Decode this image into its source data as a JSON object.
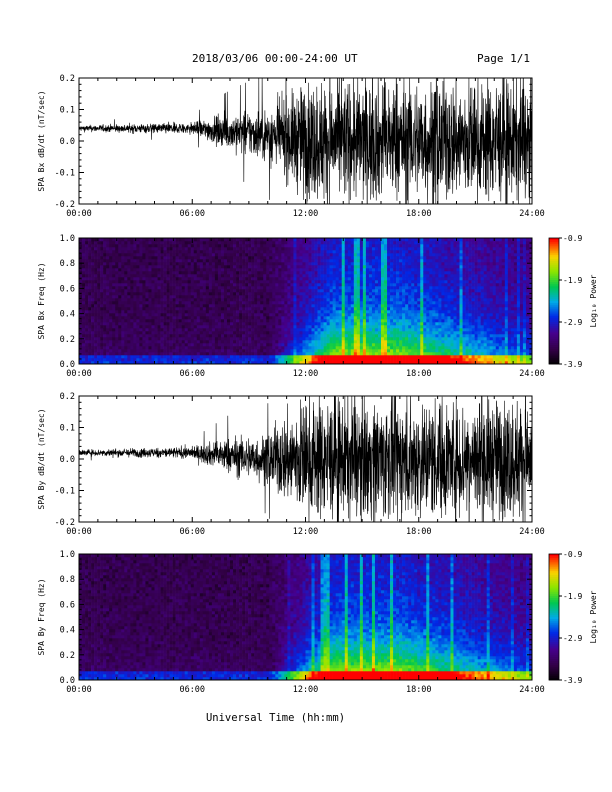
{
  "header": {
    "title": "2018/03/06  00:00-24:00 UT",
    "page": "Page 1/1"
  },
  "colorbar_label": "Log₁₀ Power",
  "colorbar_ticks": [
    "-0.9",
    "-1.9",
    "-2.9",
    "-3.9"
  ],
  "colors": {
    "line": "#000000",
    "axis": "#000000"
  },
  "chart_data": [
    {
      "type": "line",
      "ylabel": "SPA Bx dB/dt (nT/sec)",
      "ylim": [
        -0.2,
        0.2
      ],
      "yticks": [
        "0.2",
        "0.1",
        "0.0",
        "-0.1",
        "-0.2"
      ],
      "xlim": [
        "00:00",
        "24:00"
      ],
      "xticks": [
        "00:00",
        "06:00",
        "12:00",
        "18:00",
        "24:00"
      ],
      "series": [
        {
          "x": [
            "00:00",
            "06:00",
            "08:00",
            "10:00",
            "11:00",
            "12:00",
            "14:00",
            "16:00",
            "18:00",
            "20:00",
            "22:00",
            "24:00"
          ],
          "baseline": [
            0.04,
            0.04,
            0.03,
            0.02,
            0.01,
            0.0,
            0.0,
            0.0,
            0.0,
            0.0,
            0.0,
            0.0
          ],
          "amplitude": [
            0.01,
            0.02,
            0.06,
            0.09,
            0.13,
            0.2,
            0.2,
            0.2,
            0.2,
            0.2,
            0.2,
            0.2
          ]
        }
      ]
    },
    {
      "type": "heatmap",
      "ylabel": "SPA Bx Freq (Hz)",
      "ylim": [
        0.0,
        1.0
      ],
      "yticks": [
        "1.0",
        "0.8",
        "0.6",
        "0.4",
        "0.2",
        "0.0"
      ],
      "xlim": [
        "00:00",
        "24:00"
      ],
      "xticks": [
        "00:00",
        "06:00",
        "12:00",
        "18:00",
        "24:00"
      ],
      "zlim": [
        -3.9,
        -0.9
      ],
      "zlabel": "Log₁₀ Power"
    },
    {
      "type": "line",
      "ylabel": "SPA By dB/dt (nT/sec)",
      "ylim": [
        -0.2,
        0.2
      ],
      "yticks": [
        "0.2",
        "0.1",
        "0.0",
        "-0.1",
        "-0.2"
      ],
      "xlim": [
        "00:00",
        "24:00"
      ],
      "xticks": [
        "00:00",
        "06:00",
        "12:00",
        "18:00",
        "24:00"
      ],
      "series": [
        {
          "x": [
            "00:00",
            "06:00",
            "08:00",
            "10:00",
            "11:00",
            "12:00",
            "14:00",
            "16:00",
            "18:00",
            "20:00",
            "22:00",
            "24:00"
          ],
          "baseline": [
            0.02,
            0.02,
            0.01,
            0.0,
            0.0,
            0.0,
            0.0,
            0.0,
            0.0,
            0.0,
            0.0,
            0.0
          ],
          "amplitude": [
            0.01,
            0.02,
            0.06,
            0.08,
            0.15,
            0.2,
            0.2,
            0.2,
            0.2,
            0.2,
            0.2,
            0.2
          ]
        }
      ]
    },
    {
      "type": "heatmap",
      "ylabel": "SPA By Freq (Hz)",
      "ylim": [
        0.0,
        1.0
      ],
      "yticks": [
        "1.0",
        "0.8",
        "0.6",
        "0.4",
        "0.2",
        "0.0"
      ],
      "xlim": [
        "00:00",
        "24:00"
      ],
      "xticks": [
        "00:00",
        "06:00",
        "12:00",
        "18:00",
        "24:00"
      ],
      "zlim": [
        -3.9,
        -0.9
      ],
      "zlabel": "Log₁₀ Power"
    }
  ],
  "xlabel": "Universal Time (hh:mm)"
}
